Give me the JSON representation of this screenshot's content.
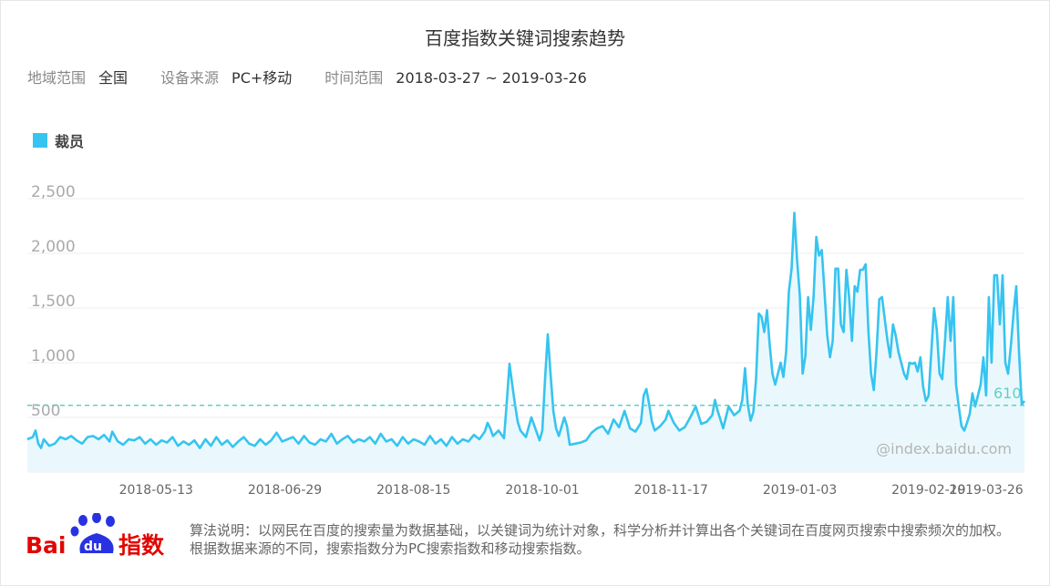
{
  "header": {
    "title": "百度指数关键词搜索趋势",
    "filters": [
      {
        "label": "地域范围",
        "value": "全国"
      },
      {
        "label": "设备来源",
        "value": "PC+移动"
      },
      {
        "label": "时间范围",
        "value": "2018-03-27 ~ 2019-03-26"
      }
    ]
  },
  "colors": {
    "series": "#36c4f0",
    "area": "#eaf8fd",
    "avg_line": "#5fd0c5",
    "grid": "#eeeeee",
    "tick": "#aaaaaa"
  },
  "watermark": "@index.baidu.com",
  "footer": {
    "logo_text_bai": "Bai",
    "logo_text_du": "du",
    "logo_text_index": "指数",
    "note": "算法说明：以网民在百度的搜索量为数据基础，以关键词为统计对象，科学分析并计算出各个关键词在百度网页搜索中搜索频次的加权。根据数据来源的不同，搜索指数分为PC搜索指数和移动搜索指数。"
  },
  "chart_data": {
    "type": "area",
    "title": "百度指数关键词搜索趋势",
    "xlabel": "",
    "ylabel": "",
    "series": [
      {
        "name": "裁员"
      }
    ],
    "ylim": [
      0,
      2500
    ],
    "y_ticks": [
      500,
      1000,
      1500,
      2000,
      2500
    ],
    "y_tick_labels": [
      "500",
      "1,000",
      "1,500",
      "2,000",
      "2,500"
    ],
    "x_tick_labels": [
      "2018-05-13",
      "2018-06-29",
      "2018-08-15",
      "2018-10-01",
      "2018-11-17",
      "2019-01-03",
      "2019-02-19",
      "2019-03-26"
    ],
    "x_tick_day_index": [
      47,
      94,
      141,
      188,
      235,
      282,
      329,
      364
    ],
    "average": 610,
    "average_label": "610",
    "grid": "horizontal",
    "legend_position": "top-left",
    "control_points": [
      [
        0,
        300
      ],
      [
        2,
        320
      ],
      [
        3,
        380
      ],
      [
        4,
        260
      ],
      [
        5,
        220
      ],
      [
        6,
        300
      ],
      [
        8,
        240
      ],
      [
        10,
        260
      ],
      [
        12,
        320
      ],
      [
        14,
        300
      ],
      [
        16,
        330
      ],
      [
        18,
        290
      ],
      [
        20,
        260
      ],
      [
        22,
        320
      ],
      [
        24,
        330
      ],
      [
        26,
        300
      ],
      [
        28,
        340
      ],
      [
        30,
        280
      ],
      [
        31,
        370
      ],
      [
        33,
        280
      ],
      [
        35,
        250
      ],
      [
        37,
        300
      ],
      [
        39,
        290
      ],
      [
        41,
        320
      ],
      [
        43,
        260
      ],
      [
        45,
        300
      ],
      [
        47,
        250
      ],
      [
        49,
        290
      ],
      [
        51,
        270
      ],
      [
        53,
        320
      ],
      [
        55,
        240
      ],
      [
        57,
        280
      ],
      [
        59,
        250
      ],
      [
        61,
        290
      ],
      [
        63,
        220
      ],
      [
        65,
        300
      ],
      [
        67,
        240
      ],
      [
        69,
        320
      ],
      [
        71,
        250
      ],
      [
        73,
        290
      ],
      [
        75,
        230
      ],
      [
        77,
        280
      ],
      [
        79,
        320
      ],
      [
        81,
        260
      ],
      [
        83,
        240
      ],
      [
        85,
        300
      ],
      [
        87,
        250
      ],
      [
        89,
        290
      ],
      [
        91,
        360
      ],
      [
        93,
        280
      ],
      [
        95,
        300
      ],
      [
        97,
        320
      ],
      [
        99,
        260
      ],
      [
        101,
        330
      ],
      [
        103,
        270
      ],
      [
        105,
        250
      ],
      [
        107,
        300
      ],
      [
        109,
        280
      ],
      [
        111,
        350
      ],
      [
        113,
        260
      ],
      [
        115,
        300
      ],
      [
        117,
        330
      ],
      [
        119,
        270
      ],
      [
        121,
        300
      ],
      [
        123,
        280
      ],
      [
        125,
        320
      ],
      [
        127,
        260
      ],
      [
        129,
        350
      ],
      [
        131,
        280
      ],
      [
        133,
        300
      ],
      [
        135,
        240
      ],
      [
        137,
        320
      ],
      [
        139,
        260
      ],
      [
        141,
        300
      ],
      [
        143,
        280
      ],
      [
        145,
        250
      ],
      [
        147,
        330
      ],
      [
        149,
        260
      ],
      [
        151,
        300
      ],
      [
        153,
        240
      ],
      [
        155,
        320
      ],
      [
        157,
        260
      ],
      [
        159,
        300
      ],
      [
        161,
        280
      ],
      [
        163,
        340
      ],
      [
        165,
        300
      ],
      [
        167,
        370
      ],
      [
        168,
        450
      ],
      [
        169,
        400
      ],
      [
        170,
        330
      ],
      [
        172,
        380
      ],
      [
        174,
        310
      ],
      [
        175,
        640
      ],
      [
        176,
        990
      ],
      [
        177,
        800
      ],
      [
        178,
        620
      ],
      [
        179,
        460
      ],
      [
        180,
        380
      ],
      [
        182,
        320
      ],
      [
        184,
        500
      ],
      [
        186,
        360
      ],
      [
        187,
        290
      ],
      [
        188,
        380
      ],
      [
        189,
        850
      ],
      [
        190,
        1260
      ],
      [
        191,
        900
      ],
      [
        192,
        560
      ],
      [
        193,
        400
      ],
      [
        194,
        330
      ],
      [
        196,
        500
      ],
      [
        197,
        420
      ],
      [
        198,
        250
      ],
      [
        200,
        260
      ],
      [
        202,
        270
      ],
      [
        204,
        290
      ],
      [
        206,
        360
      ],
      [
        208,
        400
      ],
      [
        210,
        420
      ],
      [
        212,
        350
      ],
      [
        214,
        480
      ],
      [
        216,
        410
      ],
      [
        218,
        560
      ],
      [
        219,
        480
      ],
      [
        220,
        400
      ],
      [
        222,
        370
      ],
      [
        224,
        450
      ],
      [
        225,
        700
      ],
      [
        226,
        760
      ],
      [
        227,
        620
      ],
      [
        228,
        460
      ],
      [
        229,
        380
      ],
      [
        231,
        420
      ],
      [
        233,
        480
      ],
      [
        234,
        560
      ],
      [
        236,
        450
      ],
      [
        238,
        380
      ],
      [
        240,
        410
      ],
      [
        242,
        500
      ],
      [
        244,
        600
      ],
      [
        245,
        520
      ],
      [
        246,
        440
      ],
      [
        248,
        460
      ],
      [
        250,
        520
      ],
      [
        251,
        660
      ],
      [
        252,
        560
      ],
      [
        253,
        480
      ],
      [
        254,
        400
      ],
      [
        256,
        600
      ],
      [
        258,
        520
      ],
      [
        260,
        560
      ],
      [
        261,
        660
      ],
      [
        262,
        950
      ],
      [
        263,
        620
      ],
      [
        264,
        470
      ],
      [
        265,
        550
      ],
      [
        266,
        850
      ],
      [
        267,
        1450
      ],
      [
        268,
        1420
      ],
      [
        269,
        1280
      ],
      [
        270,
        1480
      ],
      [
        271,
        1160
      ],
      [
        272,
        900
      ],
      [
        273,
        800
      ],
      [
        275,
        1000
      ],
      [
        276,
        870
      ],
      [
        277,
        1100
      ],
      [
        278,
        1650
      ],
      [
        279,
        1860
      ],
      [
        280,
        2370
      ],
      [
        281,
        1940
      ],
      [
        282,
        1620
      ],
      [
        283,
        900
      ],
      [
        284,
        1060
      ],
      [
        285,
        1600
      ],
      [
        286,
        1300
      ],
      [
        287,
        1600
      ],
      [
        288,
        2150
      ],
      [
        289,
        1980
      ],
      [
        290,
        2030
      ],
      [
        291,
        1650
      ],
      [
        292,
        1250
      ],
      [
        293,
        1050
      ],
      [
        294,
        1200
      ],
      [
        295,
        1860
      ],
      [
        296,
        1860
      ],
      [
        297,
        1350
      ],
      [
        298,
        1280
      ],
      [
        299,
        1850
      ],
      [
        300,
        1600
      ],
      [
        301,
        1200
      ],
      [
        302,
        1700
      ],
      [
        303,
        1650
      ],
      [
        304,
        1850
      ],
      [
        305,
        1850
      ],
      [
        306,
        1900
      ],
      [
        307,
        1300
      ],
      [
        308,
        900
      ],
      [
        309,
        750
      ],
      [
        310,
        1100
      ],
      [
        311,
        1580
      ],
      [
        312,
        1600
      ],
      [
        313,
        1400
      ],
      [
        314,
        1200
      ],
      [
        315,
        1050
      ],
      [
        316,
        1350
      ],
      [
        317,
        1250
      ],
      [
        318,
        1100
      ],
      [
        319,
        1000
      ],
      [
        320,
        900
      ],
      [
        321,
        850
      ],
      [
        322,
        1000
      ],
      [
        323,
        990
      ],
      [
        324,
        1000
      ],
      [
        325,
        920
      ],
      [
        326,
        1050
      ],
      [
        327,
        780
      ],
      [
        328,
        650
      ],
      [
        329,
        700
      ],
      [
        330,
        1100
      ],
      [
        331,
        1500
      ],
      [
        332,
        1300
      ],
      [
        333,
        900
      ],
      [
        334,
        850
      ],
      [
        335,
        1200
      ],
      [
        336,
        1600
      ],
      [
        337,
        1200
      ],
      [
        338,
        1600
      ],
      [
        339,
        800
      ],
      [
        340,
        600
      ],
      [
        341,
        420
      ],
      [
        342,
        380
      ],
      [
        343,
        450
      ],
      [
        344,
        530
      ],
      [
        345,
        720
      ],
      [
        346,
        600
      ],
      [
        347,
        700
      ],
      [
        348,
        800
      ],
      [
        349,
        1050
      ],
      [
        350,
        700
      ],
      [
        351,
        1600
      ],
      [
        352,
        1000
      ],
      [
        353,
        1800
      ],
      [
        354,
        1800
      ],
      [
        355,
        1350
      ],
      [
        356,
        1800
      ],
      [
        357,
        1000
      ],
      [
        358,
        900
      ],
      [
        359,
        1150
      ],
      [
        360,
        1450
      ],
      [
        361,
        1700
      ],
      [
        362,
        1100
      ],
      [
        363,
        620
      ],
      [
        364,
        650
      ]
    ]
  }
}
